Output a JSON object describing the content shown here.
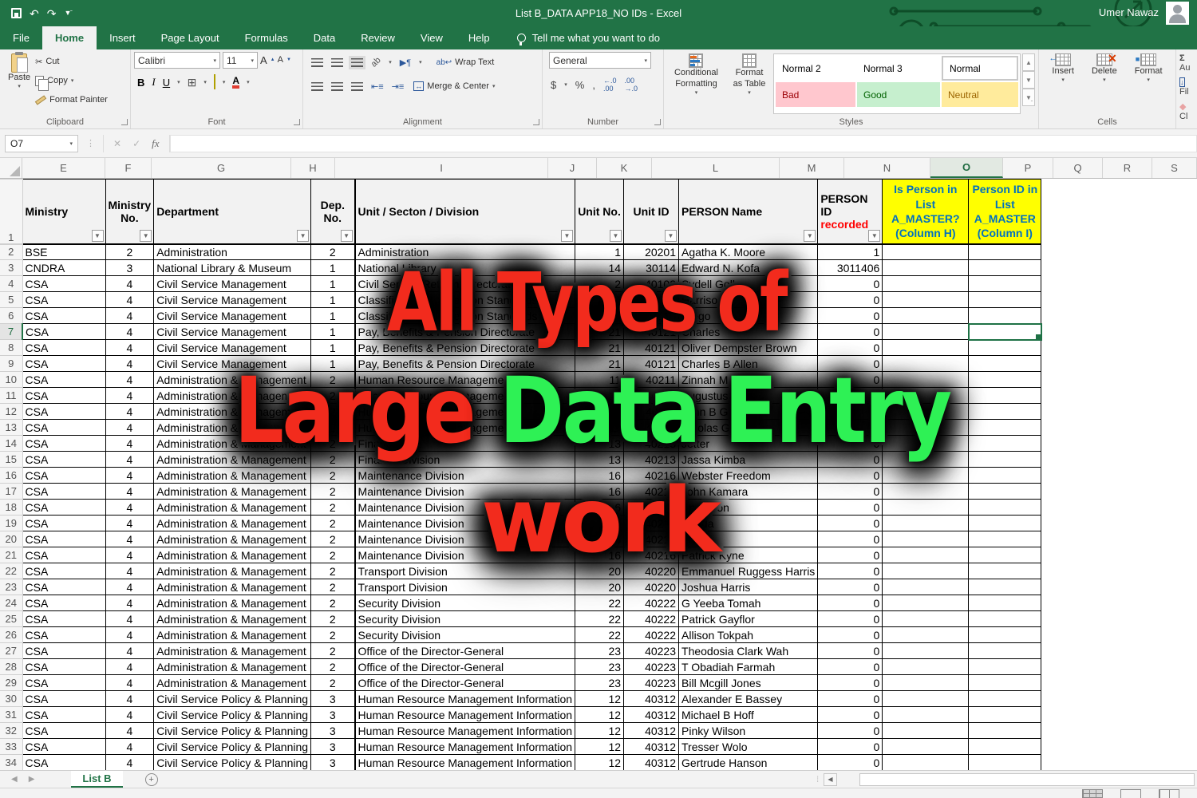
{
  "title_bar": {
    "title": "List B_DATA APP18_NO IDs  -  Excel",
    "user": "Umer Nawaz"
  },
  "ribbon_tabs": {
    "items": [
      "File",
      "Home",
      "Insert",
      "Page Layout",
      "Formulas",
      "Data",
      "Review",
      "View",
      "Help"
    ],
    "active": "Home",
    "tell_me": "Tell me what you want to do"
  },
  "ribbon": {
    "clipboard": {
      "label": "Clipboard",
      "paste": "Paste",
      "cut": "Cut",
      "copy": "Copy",
      "format_painter": "Format Painter"
    },
    "font": {
      "label": "Font",
      "family": "Calibri",
      "size": "11",
      "bold": "B",
      "italic": "I",
      "underline": "U",
      "grow": "A",
      "shrink": "A",
      "font_color": "A"
    },
    "alignment": {
      "label": "Alignment",
      "wrap_text": "Wrap Text",
      "merge_center": "Merge & Center",
      "orientation": "ab"
    },
    "number": {
      "label": "Number",
      "format": "General",
      "currency": "$",
      "percent": "%",
      "comma": ",",
      "inc_dec": "←.0 .00",
      "dec_dec": ".00 →.0"
    },
    "styles": {
      "label": "Styles",
      "conditional": "Conditional Formatting",
      "format_table": "Format as Table",
      "gallery": [
        {
          "label": "Normal 2",
          "type": "plain"
        },
        {
          "label": "Normal 3",
          "type": "plain"
        },
        {
          "label": "Normal",
          "type": "normal"
        },
        {
          "label": "Bad",
          "type": "bad"
        },
        {
          "label": "Good",
          "type": "good"
        },
        {
          "label": "Neutral",
          "type": "neutral"
        }
      ]
    },
    "cells": {
      "label": "Cells",
      "insert": "Insert",
      "delete": "Delete",
      "format": "Format"
    },
    "editing": {
      "autosum_sigma": "Σ",
      "autosum": "Au",
      "fill": "Fil",
      "clear": "Cl"
    }
  },
  "formula_bar": {
    "name_box": "O7",
    "formula": "",
    "fx": "fx"
  },
  "sheet": {
    "columns": [
      "E",
      "F",
      "G",
      "H",
      "I",
      "J",
      "K",
      "L",
      "M",
      "N",
      "O",
      "P",
      "Q",
      "R",
      "S"
    ],
    "selected_column": "O",
    "selection": {
      "cell": "O7",
      "row": 7,
      "col": "O"
    },
    "header_cells": [
      {
        "key": "ministry",
        "label": "Ministry",
        "filter": true
      },
      {
        "key": "ministry_no",
        "label": "Ministry No.",
        "filter": true,
        "center": true
      },
      {
        "key": "department",
        "label": "Department",
        "filter": true
      },
      {
        "key": "dep_no",
        "label": "Dep. No.",
        "filter": true,
        "center": true
      },
      {
        "key": "unit",
        "label": "Unit / Secton / Division",
        "filter": true
      },
      {
        "key": "unit_no",
        "label": "Unit No.",
        "filter": true,
        "center": true
      },
      {
        "key": "unit_id",
        "label": "Unit ID",
        "filter": true,
        "center": true
      },
      {
        "key": "person",
        "label": "PERSON  Name",
        "filter": true
      },
      {
        "key": "person_id",
        "label": "PERSON  ID",
        "sub": "recorded",
        "filter": true
      },
      {
        "key": "na",
        "label": "Is Person in List A_MASTER? (Column H)",
        "yellow": true
      },
      {
        "key": "ob",
        "label": "Person ID in List A_MASTER (Column I)",
        "yellow": true
      }
    ],
    "rows": [
      {
        "n": 2,
        "ministry": "BSE",
        "ministry_no": "2",
        "department": "Administration",
        "dep_no": "2",
        "unit": "Administration",
        "unit_no": "1",
        "unit_id": "20201",
        "person": "Agatha K. Moore",
        "person_id": "1"
      },
      {
        "n": 3,
        "ministry": "CNDRA",
        "ministry_no": "3",
        "department": "National Library & Museum",
        "dep_no": "1",
        "unit": "National Library",
        "unit_no": "14",
        "unit_id": "30114",
        "person": "Edward N. Kofa",
        "person_id": "3011406"
      },
      {
        "n": 4,
        "ministry": "CSA",
        "ministry_no": "4",
        "department": "Civil Service Management",
        "dep_no": "1",
        "unit": "Civil Service Reform Directorate",
        "unit_no": "2",
        "unit_id": "40102",
        "person": "Sydell Goll",
        "person_id": "0"
      },
      {
        "n": 5,
        "ministry": "CSA",
        "ministry_no": "4",
        "department": "Civil Service Management",
        "dep_no": "1",
        "unit": "Classification & Selection Standards",
        "unit_no": "10",
        "unit_id": "40110",
        "person": "Harrison",
        "person_id": "0"
      },
      {
        "n": 6,
        "ministry": "CSA",
        "ministry_no": "4",
        "department": "Civil Service Management",
        "dep_no": "1",
        "unit": "Classification & Selection Standards",
        "unit_no": "10",
        "unit_id": "40110",
        "person": "Diego",
        "person_id": "0"
      },
      {
        "n": 7,
        "ministry": "CSA",
        "ministry_no": "4",
        "department": "Civil Service Management",
        "dep_no": "1",
        "unit": "Pay, Benefits & Pension Directorate",
        "unit_no": "21",
        "unit_id": "40121",
        "person": "Charles",
        "person_id": "0"
      },
      {
        "n": 8,
        "ministry": "CSA",
        "ministry_no": "4",
        "department": "Civil Service Management",
        "dep_no": "1",
        "unit": "Pay, Benefits & Pension Directorate",
        "unit_no": "21",
        "unit_id": "40121",
        "person": "Oliver Dempster Brown",
        "person_id": "0"
      },
      {
        "n": 9,
        "ministry": "CSA",
        "ministry_no": "4",
        "department": "Civil Service Management",
        "dep_no": "1",
        "unit": "Pay, Benefits & Pension Directorate",
        "unit_no": "21",
        "unit_id": "40121",
        "person": "Charles B Allen",
        "person_id": "0"
      },
      {
        "n": 10,
        "ministry": "CSA",
        "ministry_no": "4",
        "department": "Administration & Management",
        "dep_no": "2",
        "unit": "Human Resource Management",
        "unit_no": "11",
        "unit_id": "40211",
        "person": "Zinnah Marshall",
        "person_id": "0"
      },
      {
        "n": 11,
        "ministry": "CSA",
        "ministry_no": "4",
        "department": "Administration & Management",
        "dep_no": "2",
        "unit": "Human Resource Management",
        "unit_no": "11",
        "unit_id": "40211",
        "person": "Augustus M",
        "person_id": "0"
      },
      {
        "n": 12,
        "ministry": "CSA",
        "ministry_no": "4",
        "department": "Administration & Management",
        "dep_no": "2",
        "unit": "Human Resource Management",
        "unit_no": "11",
        "unit_id": "40211",
        "person": "John B G",
        "person_id": "0"
      },
      {
        "n": 13,
        "ministry": "CSA",
        "ministry_no": "4",
        "department": "Administration & Management",
        "dep_no": "2",
        "unit": "Human Resource Management",
        "unit_no": "11",
        "unit_id": "40211",
        "person": "Nicolas G",
        "person_id": "0"
      },
      {
        "n": 14,
        "ministry": "CSA",
        "ministry_no": "4",
        "department": "Administration & Management",
        "dep_no": "2",
        "unit": "Finance Unit",
        "unit_no": "13",
        "unit_id": "40213",
        "person": "Jetter",
        "person_id": "0"
      },
      {
        "n": 15,
        "ministry": "CSA",
        "ministry_no": "4",
        "department": "Administration & Management",
        "dep_no": "2",
        "unit": "Finance Division",
        "unit_no": "13",
        "unit_id": "40213",
        "person": "Jassa Kimba",
        "person_id": "0"
      },
      {
        "n": 16,
        "ministry": "CSA",
        "ministry_no": "4",
        "department": "Administration & Management",
        "dep_no": "2",
        "unit": "Maintenance Division",
        "unit_no": "16",
        "unit_id": "40216",
        "person": "Webster Freedom",
        "person_id": "0"
      },
      {
        "n": 17,
        "ministry": "CSA",
        "ministry_no": "4",
        "department": "Administration & Management",
        "dep_no": "2",
        "unit": "Maintenance Division",
        "unit_no": "16",
        "unit_id": "40216",
        "person": "John Kamara",
        "person_id": "0"
      },
      {
        "n": 18,
        "ministry": "CSA",
        "ministry_no": "4",
        "department": "Administration & Management",
        "dep_no": "2",
        "unit": "Maintenance Division",
        "unit_no": "16",
        "unit_id": "40216",
        "person": "Anderson",
        "person_id": "0"
      },
      {
        "n": 19,
        "ministry": "CSA",
        "ministry_no": "4",
        "department": "Administration & Management",
        "dep_no": "2",
        "unit": "Maintenance Division",
        "unit_no": "16",
        "unit_id": "40216",
        "person": "Banda",
        "person_id": "0"
      },
      {
        "n": 20,
        "ministry": "CSA",
        "ministry_no": "4",
        "department": "Administration & Management",
        "dep_no": "2",
        "unit": "Maintenance Division",
        "unit_no": "16",
        "unit_id": "40216",
        "person": "Mason",
        "person_id": "0"
      },
      {
        "n": 21,
        "ministry": "CSA",
        "ministry_no": "4",
        "department": "Administration & Management",
        "dep_no": "2",
        "unit": "Maintenance Division",
        "unit_no": "16",
        "unit_id": "40216",
        "person": "Patrick Kyne",
        "person_id": "0"
      },
      {
        "n": 22,
        "ministry": "CSA",
        "ministry_no": "4",
        "department": "Administration & Management",
        "dep_no": "2",
        "unit": "Transport Division",
        "unit_no": "20",
        "unit_id": "40220",
        "person": "Emmanuel Ruggess Harris",
        "person_id": "0"
      },
      {
        "n": 23,
        "ministry": "CSA",
        "ministry_no": "4",
        "department": "Administration & Management",
        "dep_no": "2",
        "unit": "Transport Division",
        "unit_no": "20",
        "unit_id": "40220",
        "person": "Joshua Harris",
        "person_id": "0"
      },
      {
        "n": 24,
        "ministry": "CSA",
        "ministry_no": "4",
        "department": "Administration & Management",
        "dep_no": "2",
        "unit": "Security Division",
        "unit_no": "22",
        "unit_id": "40222",
        "person": "G Yeeba Tomah",
        "person_id": "0"
      },
      {
        "n": 25,
        "ministry": "CSA",
        "ministry_no": "4",
        "department": "Administration & Management",
        "dep_no": "2",
        "unit": "Security Division",
        "unit_no": "22",
        "unit_id": "40222",
        "person": "Patrick Gayflor",
        "person_id": "0"
      },
      {
        "n": 26,
        "ministry": "CSA",
        "ministry_no": "4",
        "department": "Administration & Management",
        "dep_no": "2",
        "unit": "Security Division",
        "unit_no": "22",
        "unit_id": "40222",
        "person": "Allison Tokpah",
        "person_id": "0"
      },
      {
        "n": 27,
        "ministry": "CSA",
        "ministry_no": "4",
        "department": "Administration & Management",
        "dep_no": "2",
        "unit": "Office of the Director-General",
        "unit_no": "23",
        "unit_id": "40223",
        "person": "Theodosia Clark Wah",
        "person_id": "0"
      },
      {
        "n": 28,
        "ministry": "CSA",
        "ministry_no": "4",
        "department": "Administration & Management",
        "dep_no": "2",
        "unit": "Office of the Director-General",
        "unit_no": "23",
        "unit_id": "40223",
        "person": "T Obadiah Farmah",
        "person_id": "0"
      },
      {
        "n": 29,
        "ministry": "CSA",
        "ministry_no": "4",
        "department": "Administration & Management",
        "dep_no": "2",
        "unit": "Office of the Director-General",
        "unit_no": "23",
        "unit_id": "40223",
        "person": "Bill Mcgill Jones",
        "person_id": "0"
      },
      {
        "n": 30,
        "ministry": "CSA",
        "ministry_no": "4",
        "department": "Civil Service Policy & Planning",
        "dep_no": "3",
        "unit": "Human Resource Management Information",
        "unit_no": "12",
        "unit_id": "40312",
        "person": "Alexander E Bassey",
        "person_id": "0"
      },
      {
        "n": 31,
        "ministry": "CSA",
        "ministry_no": "4",
        "department": "Civil Service Policy & Planning",
        "dep_no": "3",
        "unit": "Human Resource Management Information",
        "unit_no": "12",
        "unit_id": "40312",
        "person": "Michael B Hoff",
        "person_id": "0"
      },
      {
        "n": 32,
        "ministry": "CSA",
        "ministry_no": "4",
        "department": "Civil Service Policy & Planning",
        "dep_no": "3",
        "unit": "Human Resource Management Information",
        "unit_no": "12",
        "unit_id": "40312",
        "person": "Pinky Wilson",
        "person_id": "0"
      },
      {
        "n": 33,
        "ministry": "CSA",
        "ministry_no": "4",
        "department": "Civil Service Policy & Planning",
        "dep_no": "3",
        "unit": "Human Resource Management Information",
        "unit_no": "12",
        "unit_id": "40312",
        "person": "Tresser Wolo",
        "person_id": "0"
      },
      {
        "n": 34,
        "ministry": "CSA",
        "ministry_no": "4",
        "department": "Civil Service Policy & Planning",
        "dep_no": "3",
        "unit": "Human Resource Management Information",
        "unit_no": "12",
        "unit_id": "40312",
        "person": "Gertrude Hanson",
        "person_id": "0"
      }
    ]
  },
  "watermark": {
    "line1": "All Types of",
    "line2_red": "Large ",
    "line2_green": "Data Entry",
    "line3": "work",
    "red": "#f22b1d",
    "green": "#2ef155"
  },
  "sheet_tabs": {
    "active": "List B"
  }
}
